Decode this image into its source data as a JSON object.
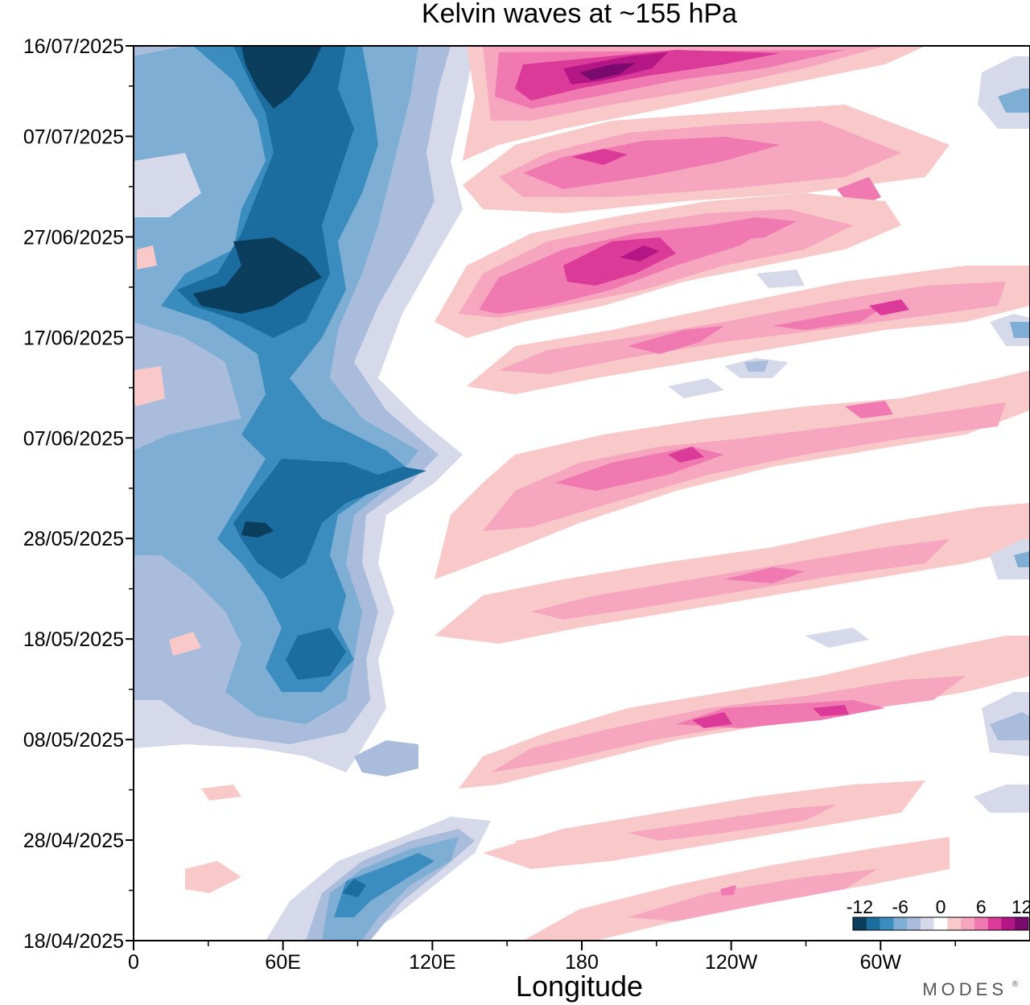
{
  "chart_data": {
    "type": "heatmap",
    "title": "Kelvin waves at ~155 hPa",
    "xlabel": "Longitude",
    "ylabel": "",
    "x_ticks": [
      "0",
      "60E",
      "120E",
      "180",
      "120W",
      "60W"
    ],
    "x_tick_values": [
      0,
      60,
      120,
      180,
      240,
      300
    ],
    "x_range": [
      0,
      360
    ],
    "y_ticks": [
      "16/07/2025",
      "07/07/2025",
      "27/06/2025",
      "17/06/2025",
      "07/06/2025",
      "28/05/2025",
      "18/05/2025",
      "08/05/2025",
      "28/04/2025",
      "18/04/2025"
    ],
    "y_tick_days": [
      89,
      80,
      70,
      60,
      50,
      40,
      30,
      20,
      10,
      0
    ],
    "y_range_days": [
      0,
      89
    ],
    "colorbar": {
      "tick_labels": [
        "-12",
        "-6",
        "0",
        "6",
        "12"
      ],
      "levels": [
        -12,
        -10,
        -8,
        -6,
        -4,
        -2,
        2,
        4,
        6,
        8,
        10,
        12
      ],
      "colors": [
        "#0b3d5c",
        "#1a6d9e",
        "#3b8dc0",
        "#7eaed3",
        "#a9bcdb",
        "#d6d9ea",
        "#ffffff",
        "#f9c9c9",
        "#f6a6bf",
        "#ef79b0",
        "#dc3a99",
        "#b41685",
        "#7a0a6e"
      ]
    },
    "features": [
      {
        "name": "negative-band-indian-ocean",
        "sign": "negative",
        "description_lon": [
          40,
          80
        ],
        "peak": -12
      },
      {
        "name": "negative-band-late-april",
        "sign": "negative",
        "description_lon": [
          80,
          130
        ],
        "peak": -8
      },
      {
        "name": "positive-kelvin-streaks",
        "sign": "positive",
        "description_lon": [
          130,
          360
        ],
        "peak": 12
      }
    ]
  },
  "branding": {
    "logo_text": "MODES",
    "logo_mark": "®"
  }
}
